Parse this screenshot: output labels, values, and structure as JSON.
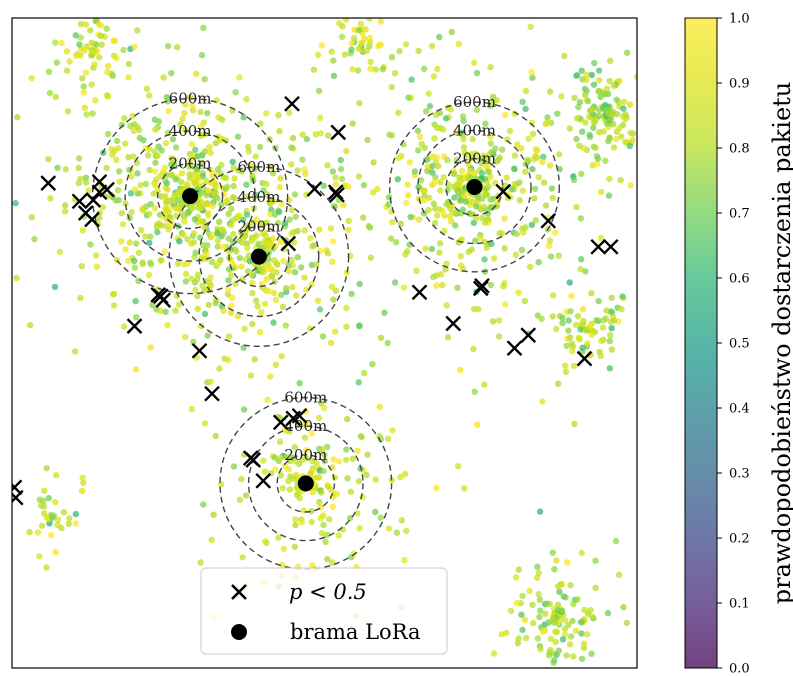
{
  "chart_data": {
    "type": "scatter",
    "title": "",
    "xlabel": "",
    "ylabel": "",
    "xlim": [
      0,
      1000
    ],
    "ylim": [
      0,
      1000
    ],
    "axis_ticks_visible": false,
    "colormap": "viridis",
    "point_alpha": 0.75,
    "gateways": {
      "label": "brama LoRa",
      "color": "#000000",
      "points": [
        {
          "x": 285,
          "y": 726
        },
        {
          "x": 395,
          "y": 633
        },
        {
          "x": 740,
          "y": 740
        },
        {
          "x": 470,
          "y": 284
        }
      ]
    },
    "rings": {
      "radii_m": [
        200,
        400,
        600
      ],
      "labels": [
        "200m",
        "400m",
        "600m"
      ],
      "gateway_scale": [
        1.0,
        0.92,
        0.87,
        0.88
      ]
    },
    "low_p_nodes": {
      "label": "p < 0.5",
      "color": "#000000",
      "points": [
        {
          "x": 58,
          "y": 746
        },
        {
          "x": 108,
          "y": 718
        },
        {
          "x": 118,
          "y": 700
        },
        {
          "x": 128,
          "y": 690
        },
        {
          "x": 140,
          "y": 732
        },
        {
          "x": 152,
          "y": 736
        },
        {
          "x": 140,
          "y": 748
        },
        {
          "x": 130,
          "y": 720
        },
        {
          "x": 448,
          "y": 868
        },
        {
          "x": 522,
          "y": 824
        },
        {
          "x": 484,
          "y": 737
        },
        {
          "x": 518,
          "y": 732
        },
        {
          "x": 520,
          "y": 728
        },
        {
          "x": 442,
          "y": 653
        },
        {
          "x": 234,
          "y": 574
        },
        {
          "x": 238,
          "y": 572
        },
        {
          "x": 242,
          "y": 566
        },
        {
          "x": 196,
          "y": 526
        },
        {
          "x": 300,
          "y": 488
        },
        {
          "x": 320,
          "y": 422
        },
        {
          "x": 450,
          "y": 384
        },
        {
          "x": 460,
          "y": 388
        },
        {
          "x": 430,
          "y": 378
        },
        {
          "x": 382,
          "y": 323
        },
        {
          "x": 386,
          "y": 320
        },
        {
          "x": 402,
          "y": 288
        },
        {
          "x": 786,
          "y": 733
        },
        {
          "x": 858,
          "y": 688
        },
        {
          "x": 938,
          "y": 648
        },
        {
          "x": 958,
          "y": 648
        },
        {
          "x": 652,
          "y": 578
        },
        {
          "x": 750,
          "y": 584
        },
        {
          "x": 752,
          "y": 588
        },
        {
          "x": 706,
          "y": 530
        },
        {
          "x": 826,
          "y": 512
        },
        {
          "x": 804,
          "y": 492
        },
        {
          "x": 916,
          "y": 476
        },
        {
          "x": 4,
          "y": 278
        },
        {
          "x": 6,
          "y": 262
        }
      ]
    },
    "colorbar": {
      "label": "prawdopodobieństwo dostarczenia pakietu",
      "min": 0.0,
      "max": 1.0,
      "ticks": [
        "0.0",
        "0.1",
        "0.2",
        "0.3",
        "0.4",
        "0.5",
        "0.6",
        "0.7",
        "0.8",
        "0.9",
        "1.0"
      ]
    },
    "legend": {
      "position": "bottom-center",
      "entries": [
        {
          "marker": "x",
          "label": "p < 0.5"
        },
        {
          "marker": "circle",
          "label": "brama LoRa"
        }
      ]
    },
    "node_clusters": [
      {
        "x": 285,
        "y": 726,
        "spread": 260,
        "n": 560,
        "p_mean": 0.82
      },
      {
        "x": 395,
        "y": 633,
        "spread": 170,
        "n": 240,
        "p_mean": 0.83
      },
      {
        "x": 740,
        "y": 740,
        "spread": 240,
        "n": 470,
        "p_mean": 0.82
      },
      {
        "x": 470,
        "y": 284,
        "spread": 180,
        "n": 210,
        "p_mean": 0.85
      },
      {
        "x": 950,
        "y": 850,
        "spread": 90,
        "n": 150,
        "p_mean": 0.78
      },
      {
        "x": 870,
        "y": 80,
        "spread": 110,
        "n": 130,
        "p_mean": 0.8
      },
      {
        "x": 60,
        "y": 230,
        "spread": 80,
        "n": 40,
        "p_mean": 0.86
      },
      {
        "x": 130,
        "y": 950,
        "spread": 90,
        "n": 70,
        "p_mean": 0.86
      },
      {
        "x": 560,
        "y": 960,
        "spread": 110,
        "n": 60,
        "p_mean": 0.86
      },
      {
        "x": 920,
        "y": 520,
        "spread": 90,
        "n": 80,
        "p_mean": 0.8
      }
    ]
  }
}
